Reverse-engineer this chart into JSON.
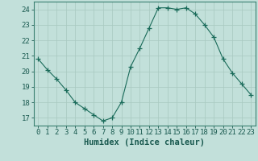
{
  "x": [
    0,
    1,
    2,
    3,
    4,
    5,
    6,
    7,
    8,
    9,
    10,
    11,
    12,
    13,
    14,
    15,
    16,
    17,
    18,
    19,
    20,
    21,
    22,
    23
  ],
  "y": [
    20.8,
    20.1,
    19.5,
    18.8,
    18.0,
    17.6,
    17.2,
    16.8,
    17.0,
    18.0,
    20.3,
    21.5,
    22.8,
    24.1,
    24.1,
    24.0,
    24.1,
    23.7,
    23.0,
    22.2,
    20.8,
    19.9,
    19.2,
    18.5
  ],
  "line_color": "#1a6b5a",
  "marker": "+",
  "marker_size": 4,
  "bg_color": "#c2e0da",
  "grid_color": "#a8c8c0",
  "xlabel": "Humidex (Indice chaleur)",
  "ylim": [
    16.5,
    24.5
  ],
  "yticks": [
    17,
    18,
    19,
    20,
    21,
    22,
    23,
    24
  ],
  "xticks": [
    0,
    1,
    2,
    3,
    4,
    5,
    6,
    7,
    8,
    9,
    10,
    11,
    12,
    13,
    14,
    15,
    16,
    17,
    18,
    19,
    20,
    21,
    22,
    23
  ],
  "tick_color": "#1a5a50",
  "label_color": "#1a5a50",
  "axis_color": "#3a8070",
  "font_size": 6.5,
  "xlabel_fontsize": 7.5
}
